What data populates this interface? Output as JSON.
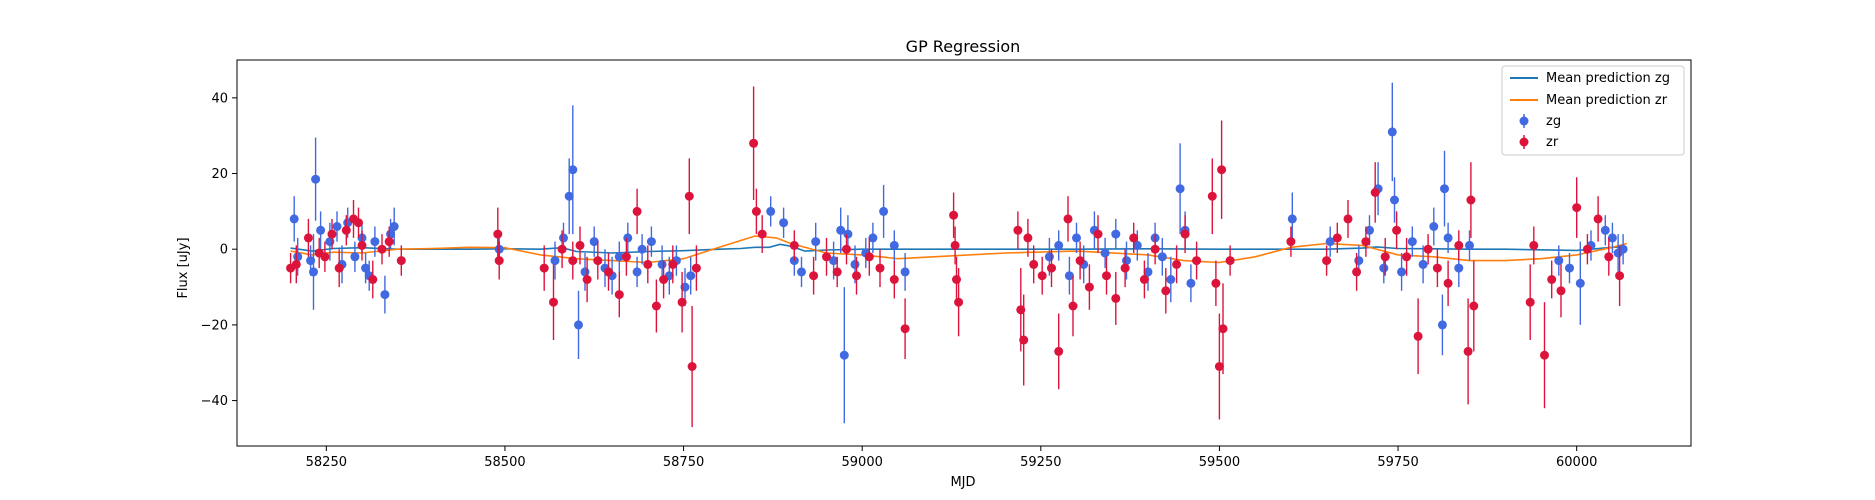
{
  "chart_data": {
    "type": "scatter",
    "title": "GP Regression",
    "xlabel": "MJD",
    "ylabel": "Flux [uJy]",
    "xlim": [
      58125,
      60160
    ],
    "ylim": [
      -52,
      50
    ],
    "xticks": [
      58250,
      58500,
      58750,
      59000,
      59250,
      59500,
      59750,
      60000
    ],
    "yticks": [
      -40,
      -20,
      0,
      20,
      40
    ],
    "legend_position": "top-right",
    "legend": [
      "Mean prediction zg",
      "Mean prediction zr",
      "zg",
      "zr"
    ],
    "colors": {
      "mean_zg": "#1f77b4",
      "mean_zr": "#ff7f0e",
      "zg": "#4169e1",
      "zr": "#dc143c"
    },
    "mean_prediction": [
      {
        "name": "Mean prediction zg",
        "x": [
          58200,
          58230,
          58260,
          58300,
          58350,
          58400,
          58450,
          58500,
          58550,
          58580,
          58600,
          58650,
          58700,
          58750,
          58800,
          58830,
          58850,
          58870,
          58885,
          58900,
          58920,
          58950,
          59000,
          59100,
          59200,
          59300,
          59400,
          59500,
          59600,
          59650,
          59700,
          59720,
          59750,
          59800,
          59850,
          59900,
          60000,
          60050,
          60070
        ],
        "y": [
          0.3,
          -0.5,
          0.2,
          0.4,
          0.0,
          0.0,
          0.0,
          0.1,
          0.0,
          0.4,
          -0.6,
          -1.0,
          -0.6,
          -0.4,
          0.0,
          0.2,
          0.5,
          0.5,
          1.3,
          0.8,
          -0.5,
          -0.2,
          0.0,
          0.0,
          0.0,
          0.0,
          0.1,
          0.0,
          0.0,
          0.0,
          0.3,
          0.6,
          0.2,
          0.1,
          0.0,
          0.0,
          -0.3,
          0.5,
          0.6
        ]
      },
      {
        "name": "Mean prediction zr",
        "x": [
          58200,
          58230,
          58260,
          58300,
          58350,
          58400,
          58450,
          58500,
          58550,
          58600,
          58650,
          58700,
          58750,
          58800,
          58850,
          58880,
          58900,
          58950,
          59000,
          59050,
          59100,
          59200,
          59300,
          59400,
          59450,
          59500,
          59550,
          59600,
          59650,
          59700,
          59750,
          59800,
          59850,
          59900,
          59950,
          60000,
          60050,
          60070
        ],
        "y": [
          -0.5,
          -1.5,
          -0.8,
          -1.0,
          0.0,
          0.2,
          0.5,
          0.4,
          -1.5,
          -2.5,
          -3.0,
          -3.5,
          -2.5,
          0.5,
          3.5,
          3.0,
          1.5,
          -1.0,
          -1.5,
          -2.5,
          -2.0,
          -1.0,
          -0.5,
          -1.5,
          -3.0,
          -3.5,
          -2.0,
          0.5,
          1.5,
          1.0,
          -1.5,
          -2.0,
          -3.0,
          -3.0,
          -2.5,
          -1.5,
          0.5,
          1.5
        ]
      }
    ],
    "series": [
      {
        "name": "zg",
        "points": [
          [
            58205,
            8,
            6
          ],
          [
            58210,
            -2,
            5
          ],
          [
            58228,
            -3,
            4
          ],
          [
            58232,
            -6,
            10
          ],
          [
            58235,
            18.5,
            11
          ],
          [
            58242,
            5,
            5
          ],
          [
            58255,
            2,
            5
          ],
          [
            58265,
            6,
            4
          ],
          [
            58272,
            -4,
            5
          ],
          [
            58280,
            7,
            4
          ],
          [
            58290,
            -2,
            4
          ],
          [
            58300,
            3,
            4
          ],
          [
            58305,
            -5,
            4
          ],
          [
            58310,
            -7,
            4
          ],
          [
            58318,
            2,
            4
          ],
          [
            58332,
            -12,
            5
          ],
          [
            58340,
            4,
            4
          ],
          [
            58345,
            6,
            5
          ],
          [
            58492,
            0,
            4
          ],
          [
            58570,
            -3,
            5
          ],
          [
            58582,
            3,
            4
          ],
          [
            58590,
            14,
            10
          ],
          [
            58595,
            21,
            17
          ],
          [
            58603,
            -20,
            9
          ],
          [
            58612,
            -6,
            5
          ],
          [
            58625,
            2,
            4
          ],
          [
            58640,
            -5,
            5
          ],
          [
            58650,
            -7,
            5
          ],
          [
            58660,
            -2,
            4
          ],
          [
            58672,
            3,
            4
          ],
          [
            58685,
            -6,
            4
          ],
          [
            58692,
            0,
            4
          ],
          [
            58705,
            2,
            4
          ],
          [
            58720,
            -4,
            5
          ],
          [
            58730,
            -7,
            5
          ],
          [
            58740,
            -3,
            4
          ],
          [
            58752,
            -10,
            5
          ],
          [
            58760,
            -7,
            5
          ],
          [
            58872,
            10,
            4
          ],
          [
            58890,
            7,
            4
          ],
          [
            58905,
            -3,
            4
          ],
          [
            58915,
            -6,
            4
          ],
          [
            58935,
            2,
            5
          ],
          [
            58960,
            -3,
            5
          ],
          [
            58970,
            5,
            6
          ],
          [
            58975,
            -28,
            18
          ],
          [
            58980,
            4,
            5
          ],
          [
            58990,
            -4,
            5
          ],
          [
            59005,
            -1,
            4
          ],
          [
            59015,
            3,
            4
          ],
          [
            59030,
            10,
            7
          ],
          [
            59045,
            1,
            4
          ],
          [
            59060,
            -6,
            5
          ],
          [
            59262,
            -2,
            5
          ],
          [
            59275,
            1,
            4
          ],
          [
            59290,
            -7,
            5
          ],
          [
            59300,
            3,
            4
          ],
          [
            59310,
            -4,
            5
          ],
          [
            59325,
            5,
            5
          ],
          [
            59340,
            -1,
            4
          ],
          [
            59355,
            4,
            4
          ],
          [
            59370,
            -3,
            5
          ],
          [
            59385,
            1,
            4
          ],
          [
            59400,
            -6,
            5
          ],
          [
            59410,
            3,
            4
          ],
          [
            59420,
            -2,
            5
          ],
          [
            59432,
            -8,
            6
          ],
          [
            59445,
            16,
            12
          ],
          [
            59452,
            5,
            5
          ],
          [
            59460,
            -9,
            5
          ],
          [
            59602,
            8,
            7
          ],
          [
            59655,
            2,
            4
          ],
          [
            59695,
            -3,
            4
          ],
          [
            59710,
            5,
            4
          ],
          [
            59722,
            16,
            7
          ],
          [
            59730,
            -5,
            4
          ],
          [
            59742,
            31,
            13
          ],
          [
            59745,
            13,
            6
          ],
          [
            59755,
            -6,
            5
          ],
          [
            59770,
            2,
            4
          ],
          [
            59785,
            -4,
            5
          ],
          [
            59800,
            6,
            5
          ],
          [
            59812,
            -20,
            8
          ],
          [
            59815,
            16,
            10
          ],
          [
            59820,
            3,
            4
          ],
          [
            59835,
            -5,
            5
          ],
          [
            59850,
            1,
            4
          ],
          [
            59975,
            -3,
            4
          ],
          [
            59990,
            -5,
            4
          ],
          [
            60005,
            -9,
            11
          ],
          [
            60020,
            1,
            4
          ],
          [
            60040,
            5,
            4
          ],
          [
            60050,
            3,
            4
          ],
          [
            60058,
            -1,
            5
          ],
          [
            60065,
            0,
            4
          ]
        ]
      },
      {
        "name": "zr",
        "points": [
          [
            58200,
            -5,
            4
          ],
          [
            58208,
            -4,
            5
          ],
          [
            58225,
            3,
            5
          ],
          [
            58240,
            -1,
            4
          ],
          [
            58248,
            -2,
            4
          ],
          [
            58258,
            4,
            4
          ],
          [
            58268,
            -5,
            5
          ],
          [
            58278,
            5,
            4
          ],
          [
            58288,
            8,
            5
          ],
          [
            58295,
            7,
            4
          ],
          [
            58300,
            1,
            4
          ],
          [
            58315,
            -8,
            5
          ],
          [
            58328,
            0,
            4
          ],
          [
            58338,
            2,
            4
          ],
          [
            58355,
            -3,
            4
          ],
          [
            58490,
            4,
            7
          ],
          [
            58492,
            -3,
            5
          ],
          [
            58555,
            -5,
            6
          ],
          [
            58568,
            -14,
            10
          ],
          [
            58580,
            0,
            5
          ],
          [
            58595,
            -3,
            5
          ],
          [
            58605,
            1,
            5
          ],
          [
            58615,
            -8,
            6
          ],
          [
            58630,
            -3,
            5
          ],
          [
            58645,
            -6,
            5
          ],
          [
            58660,
            -12,
            6
          ],
          [
            58670,
            -2,
            5
          ],
          [
            58685,
            10,
            6
          ],
          [
            58700,
            -4,
            5
          ],
          [
            58712,
            -15,
            7
          ],
          [
            58722,
            -8,
            5
          ],
          [
            58735,
            -4,
            5
          ],
          [
            58748,
            -14,
            8
          ],
          [
            58758,
            14,
            10
          ],
          [
            58762,
            -31,
            16
          ],
          [
            58768,
            -5,
            6
          ],
          [
            58848,
            28,
            15
          ],
          [
            58852,
            10,
            6
          ],
          [
            58860,
            4,
            5
          ],
          [
            58905,
            1,
            4
          ],
          [
            58932,
            -7,
            5
          ],
          [
            58950,
            -2,
            5
          ],
          [
            58965,
            -6,
            4
          ],
          [
            58978,
            0,
            4
          ],
          [
            58992,
            -7,
            5
          ],
          [
            59010,
            -2,
            5
          ],
          [
            59025,
            -5,
            5
          ],
          [
            59045,
            -8,
            5
          ],
          [
            59060,
            -21,
            8
          ],
          [
            59128,
            9,
            6
          ],
          [
            59130,
            1,
            5
          ],
          [
            59132,
            -8,
            6
          ],
          [
            59135,
            -14,
            9
          ],
          [
            59218,
            5,
            5
          ],
          [
            59222,
            -16,
            11
          ],
          [
            59226,
            -24,
            12
          ],
          [
            59232,
            3,
            5
          ],
          [
            59240,
            -4,
            5
          ],
          [
            59252,
            -7,
            5
          ],
          [
            59265,
            -5,
            5
          ],
          [
            59275,
            -27,
            10
          ],
          [
            59288,
            8,
            6
          ],
          [
            59295,
            -15,
            8
          ],
          [
            59305,
            -3,
            5
          ],
          [
            59318,
            -10,
            6
          ],
          [
            59330,
            4,
            5
          ],
          [
            59342,
            -7,
            5
          ],
          [
            59355,
            -13,
            7
          ],
          [
            59368,
            -5,
            5
          ],
          [
            59380,
            3,
            4
          ],
          [
            59395,
            -8,
            5
          ],
          [
            59410,
            0,
            4
          ],
          [
            59425,
            -11,
            6
          ],
          [
            59440,
            -4,
            5
          ],
          [
            59452,
            4,
            5
          ],
          [
            59468,
            -3,
            5
          ],
          [
            59490,
            14,
            10
          ],
          [
            59495,
            -9,
            6
          ],
          [
            59500,
            -31,
            14
          ],
          [
            59503,
            21,
            13
          ],
          [
            59505,
            -21,
            12
          ],
          [
            59515,
            -3,
            4
          ],
          [
            59600,
            2,
            4
          ],
          [
            59650,
            -3,
            4
          ],
          [
            59665,
            3,
            4
          ],
          [
            59680,
            8,
            5
          ],
          [
            59692,
            -6,
            5
          ],
          [
            59705,
            2,
            4
          ],
          [
            59718,
            15,
            8
          ],
          [
            59732,
            -2,
            5
          ],
          [
            59748,
            5,
            5
          ],
          [
            59762,
            -2,
            5
          ],
          [
            59778,
            -23,
            10
          ],
          [
            59792,
            0,
            4
          ],
          [
            59805,
            -5,
            5
          ],
          [
            59820,
            -9,
            6
          ],
          [
            59835,
            1,
            4
          ],
          [
            59848,
            -27,
            14
          ],
          [
            59852,
            13,
            10
          ],
          [
            59856,
            -15,
            12
          ],
          [
            59935,
            -14,
            10
          ],
          [
            59940,
            1,
            5
          ],
          [
            59955,
            -28,
            14
          ],
          [
            59965,
            -8,
            5
          ],
          [
            59978,
            -11,
            7
          ],
          [
            60000,
            11,
            8
          ],
          [
            60015,
            0,
            4
          ],
          [
            60030,
            8,
            6
          ],
          [
            60045,
            -2,
            5
          ],
          [
            60060,
            -7,
            8
          ]
        ]
      }
    ]
  }
}
